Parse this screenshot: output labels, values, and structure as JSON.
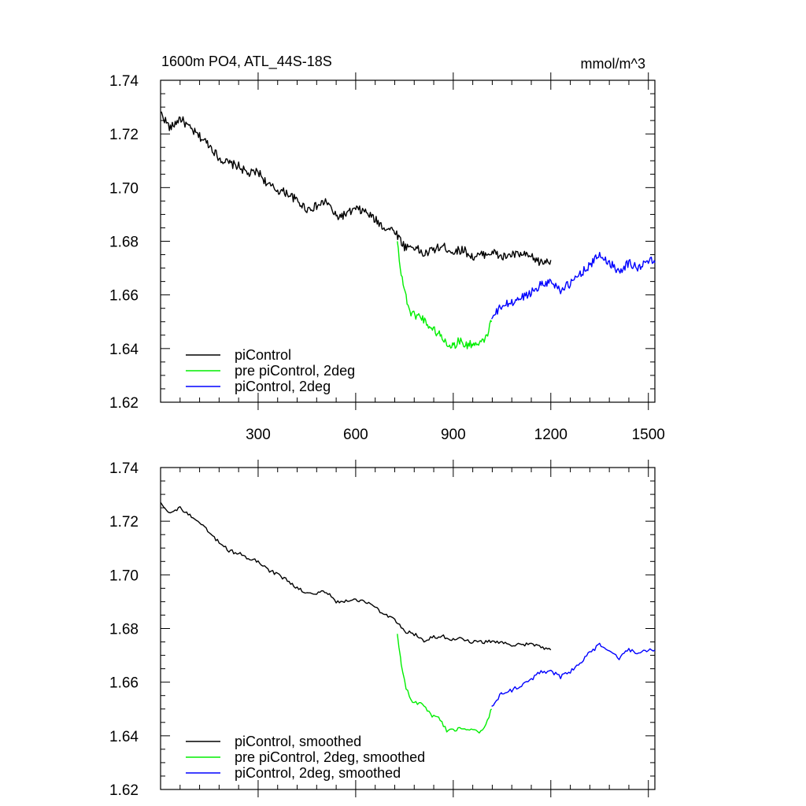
{
  "title_left": "1600m PO4, ATL_44S-18S",
  "title_right": "mmol/m^3",
  "chart_data": [
    {
      "type": "line",
      "xlim": [
        0,
        1520
      ],
      "ylim": [
        1.62,
        1.74
      ],
      "yticks": [
        "1.62",
        "1.64",
        "1.66",
        "1.68",
        "1.70",
        "1.72",
        "1.74"
      ],
      "xticks": [
        "300",
        "600",
        "900",
        "1200",
        "1500"
      ],
      "legend_position": "bottom-left",
      "series": [
        {
          "name": "piControl",
          "color": "#000000",
          "x": [
            0,
            30,
            60,
            90,
            120,
            150,
            180,
            210,
            240,
            270,
            300,
            330,
            360,
            390,
            420,
            450,
            480,
            510,
            540,
            570,
            600,
            630,
            660,
            690,
            720,
            750,
            780,
            810,
            840,
            870,
            900,
            930,
            960,
            990,
            1020,
            1050,
            1080,
            1110,
            1140,
            1170,
            1200
          ],
          "y": [
            1.728,
            1.722,
            1.726,
            1.722,
            1.719,
            1.716,
            1.711,
            1.709,
            1.708,
            1.705,
            1.706,
            1.701,
            1.699,
            1.698,
            1.695,
            1.692,
            1.693,
            1.695,
            1.689,
            1.69,
            1.692,
            1.691,
            1.688,
            1.685,
            1.684,
            1.678,
            1.678,
            1.675,
            1.677,
            1.678,
            1.676,
            1.677,
            1.674,
            1.675,
            1.676,
            1.674,
            1.675,
            1.675,
            1.674,
            1.672,
            1.673
          ]
        },
        {
          "name": "pre piControl, 2deg",
          "color": "#00ee00",
          "x": [
            728,
            740,
            755,
            770,
            800,
            830,
            860,
            880,
            900,
            920,
            940,
            960,
            980,
            1000,
            1018
          ],
          "y": [
            1.68,
            1.668,
            1.659,
            1.653,
            1.652,
            1.648,
            1.645,
            1.642,
            1.641,
            1.643,
            1.641,
            1.642,
            1.641,
            1.644,
            1.65
          ]
        },
        {
          "name": "piControl, 2deg",
          "color": "#0000ff",
          "x": [
            1018,
            1050,
            1080,
            1110,
            1140,
            1170,
            1200,
            1230,
            1260,
            1290,
            1320,
            1350,
            1380,
            1410,
            1440,
            1470,
            1500,
            1520
          ],
          "y": [
            1.651,
            1.656,
            1.657,
            1.659,
            1.661,
            1.664,
            1.665,
            1.662,
            1.664,
            1.668,
            1.671,
            1.675,
            1.672,
            1.669,
            1.672,
            1.67,
            1.673,
            1.672
          ]
        }
      ]
    },
    {
      "type": "line",
      "xlim": [
        0,
        1520
      ],
      "ylim": [
        1.62,
        1.74
      ],
      "yticks": [
        "1.62",
        "1.64",
        "1.66",
        "1.68",
        "1.70",
        "1.72",
        "1.74"
      ],
      "xticks": [],
      "legend_position": "bottom-left",
      "series": [
        {
          "name": "piControl, smoothed",
          "color": "#000000",
          "x": [
            0,
            30,
            60,
            90,
            120,
            150,
            180,
            210,
            240,
            270,
            300,
            330,
            360,
            390,
            420,
            450,
            480,
            510,
            540,
            570,
            600,
            630,
            660,
            690,
            720,
            750,
            780,
            810,
            840,
            870,
            900,
            930,
            960,
            990,
            1020,
            1050,
            1080,
            1110,
            1140,
            1170,
            1200
          ],
          "y": [
            1.727,
            1.723,
            1.725,
            1.722,
            1.719,
            1.716,
            1.712,
            1.709,
            1.708,
            1.706,
            1.705,
            1.702,
            1.7,
            1.698,
            1.695,
            1.693,
            1.693,
            1.694,
            1.69,
            1.69,
            1.691,
            1.69,
            1.688,
            1.685,
            1.683,
            1.679,
            1.678,
            1.675,
            1.677,
            1.677,
            1.676,
            1.676,
            1.675,
            1.675,
            1.675,
            1.675,
            1.674,
            1.674,
            1.674,
            1.673,
            1.672
          ]
        },
        {
          "name": "pre piControl, 2deg, smoothed",
          "color": "#00ee00",
          "x": [
            728,
            740,
            755,
            770,
            800,
            830,
            860,
            880,
            900,
            920,
            940,
            960,
            980,
            1000,
            1018
          ],
          "y": [
            1.678,
            1.667,
            1.658,
            1.653,
            1.652,
            1.648,
            1.646,
            1.642,
            1.642,
            1.643,
            1.642,
            1.642,
            1.641,
            1.644,
            1.65
          ]
        },
        {
          "name": "piControl, 2deg, smoothed",
          "color": "#0000ff",
          "x": [
            1018,
            1050,
            1080,
            1110,
            1140,
            1170,
            1200,
            1230,
            1260,
            1290,
            1320,
            1350,
            1380,
            1410,
            1440,
            1470,
            1500,
            1520
          ],
          "y": [
            1.651,
            1.656,
            1.657,
            1.659,
            1.661,
            1.664,
            1.664,
            1.662,
            1.664,
            1.667,
            1.671,
            1.674,
            1.672,
            1.669,
            1.672,
            1.671,
            1.672,
            1.672
          ]
        }
      ]
    }
  ]
}
